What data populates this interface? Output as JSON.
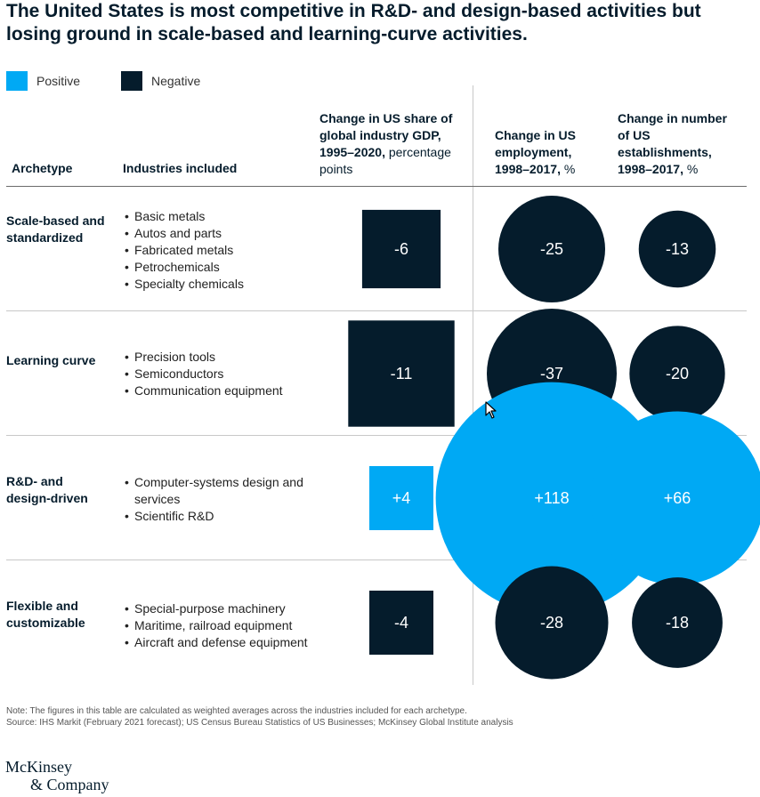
{
  "title": "The United States is most competitive in R&D- and design-based activities but losing ground in scale-based and learning-curve activities.",
  "legend": [
    {
      "label": "Positive",
      "color": "#00a9f4"
    },
    {
      "label": "Negative",
      "color": "#051c2c"
    }
  ],
  "headers": {
    "archetype": "Archetype",
    "industries": "Industries included",
    "gdp_bold": "Change in US share of global industry GDP, 1995–2020,",
    "gdp_normal": "percentage points",
    "emp_bold": "Change in US employment, 1998–2017,",
    "emp_normal": "%",
    "est_bold": "Change in number of US establishments, 1998–2017,",
    "est_normal": "%"
  },
  "chart_data": {
    "type": "table",
    "columns": [
      "Archetype",
      "Industries included",
      "Change in US share of global industry GDP, 1995–2020, percentage points",
      "Change in US employment, 1998–2017, %",
      "Change in number of US establishments, 1998–2017, %"
    ],
    "rows": [
      {
        "archetype": "Scale-based and standardized",
        "industries": [
          "Basic metals",
          "Autos and parts",
          "Fabricated metals",
          "Petrochemicals",
          "Specialty chemicals"
        ],
        "gdp_share": -6,
        "gdp_label": "-6",
        "employment": -25,
        "employment_label": "-25",
        "establishments": -13,
        "establishments_label": "-13"
      },
      {
        "archetype": "Learning curve",
        "industries": [
          "Precision tools",
          "Semiconductors",
          "Communication equipment"
        ],
        "gdp_share": -11,
        "gdp_label": "-11",
        "employment": -37,
        "employment_label": "-37",
        "establishments": -20,
        "establishments_label": "-20"
      },
      {
        "archetype": "R&D- and design-driven",
        "industries": [
          "Computer-systems design and services",
          "Scientific R&D"
        ],
        "gdp_share": 4,
        "gdp_label": "+4",
        "employment": 118,
        "employment_label": "+118",
        "establishments": 66,
        "establishments_label": "+66"
      },
      {
        "archetype": "Flexible and customizable",
        "industries": [
          "Special-purpose machinery",
          "Maritime, railroad equipment",
          "Aircraft and defense equipment"
        ],
        "gdp_share": -4,
        "gdp_label": "-4",
        "employment": -28,
        "employment_label": "-28",
        "establishments": -18,
        "establishments_label": "-18"
      }
    ]
  },
  "note": "Note: The figures in this table are calculated as weighted averages across the industries included for each archetype.",
  "source": "Source: IHS Markit (February 2021 forecast); US Census Bureau Statistics of US Businesses; McKinsey Global Institute analysis",
  "logo": {
    "line1": "McKinsey",
    "line2": "& Company"
  }
}
